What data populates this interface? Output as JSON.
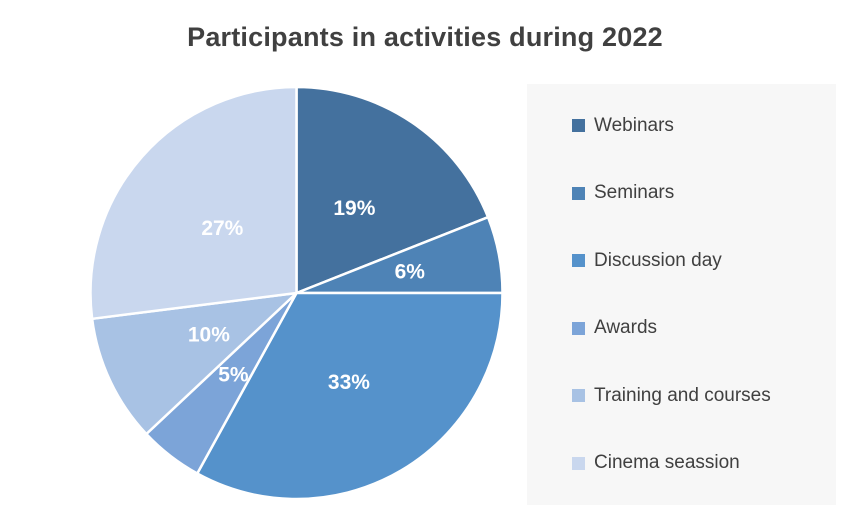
{
  "title": "Participants in activities during 2022",
  "chart_data": {
    "type": "pie",
    "title": "Participants in activities during 2022",
    "categories": [
      "Webinars",
      "Seminars",
      "Discussion day",
      "Awards",
      "Training and courses",
      "Cinema seassion"
    ],
    "values": [
      19,
      6,
      33,
      5,
      10,
      27
    ],
    "slice_labels": [
      "19%",
      "6%",
      "33%",
      "5%",
      "10%",
      "27%"
    ],
    "colors": [
      "#44719E",
      "#4E83B6",
      "#5592CB",
      "#7CA4D8",
      "#A8C2E4",
      "#C9D7EE"
    ],
    "start_angle_deg": 0,
    "direction": "clockwise",
    "legend_position": "right",
    "grid": false
  },
  "style_colors": {
    "title_text": "#404040",
    "legend_background": "#F7F7F7",
    "legend_text": "#404040",
    "slice_label_text": "#FFFFFF",
    "slice_divider": "#FFFFFF",
    "page_background": "#FFFFFF"
  }
}
